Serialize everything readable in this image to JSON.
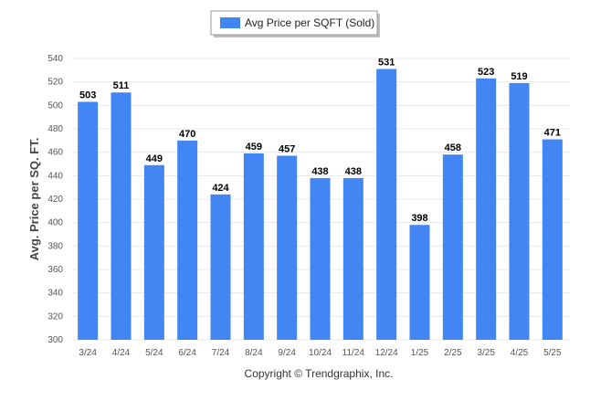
{
  "chart_data": {
    "type": "bar",
    "title": "",
    "xlabel": "",
    "ylabel": "Avg. Price per SQ. FT.",
    "categories": [
      "3/24",
      "4/24",
      "5/24",
      "6/24",
      "7/24",
      "8/24",
      "9/24",
      "10/24",
      "11/24",
      "12/24",
      "1/25",
      "2/25",
      "3/25",
      "4/25",
      "5/25"
    ],
    "series": [
      {
        "name": "Avg Price per SQFT (Sold)",
        "values": [
          503,
          511,
          449,
          470,
          424,
          459,
          457,
          438,
          438,
          531,
          398,
          458,
          523,
          519,
          471
        ],
        "color": "#4286f4"
      }
    ],
    "ylim": [
      300,
      540
    ],
    "yticks": [
      300,
      320,
      340,
      360,
      380,
      400,
      420,
      440,
      460,
      480,
      500,
      520,
      540
    ],
    "grid": true,
    "legend_position": "top-center"
  },
  "footer": {
    "copyright": "Copyright © Trendgraphix, Inc."
  },
  "colors": {
    "bar": "#4286f4",
    "grid": "#e8e8e8",
    "axis_text": "#555555",
    "data_label": "#000000"
  }
}
